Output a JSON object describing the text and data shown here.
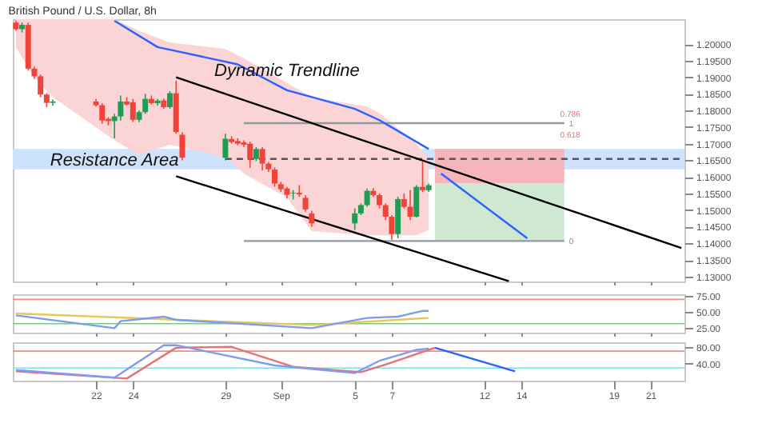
{
  "chart_data": [
    {
      "type": "candlestick",
      "title": "British Pound / U.S. Dollar, 8h",
      "tick_labels": "y",
      "x": [
        "--08-17T16:00",
        "--08-18T00:00",
        "--08-18T08:00",
        "--08-18T16:00",
        "--08-19T00:00",
        "--08-19T08:00",
        "--08-19T16:00",
        "--08-22T00:00",
        "--08-22T08:00",
        "--08-22T16:00",
        "--08-23T00:00",
        "--08-23T08:00",
        "--08-23T16:00",
        "--08-24T00:00",
        "--08-24T08:00",
        "--08-24T16:00",
        "--08-25T00:00",
        "--08-25T08:00",
        "--08-25T16:00",
        "--08-26T00:00",
        "--08-26T08:00",
        "--08-26T16:00",
        "--08-29T00:00",
        "--08-29T08:00",
        "--08-29T16:00",
        "--08-30T00:00",
        "--08-30T08:00",
        "--08-30T16:00",
        "--08-31T00:00",
        "--08-31T08:00",
        "--08-31T16:00",
        "--09-01T00:00",
        "--09-01T08:00",
        "--09-01T16:00",
        "--09-02T00:00",
        "--09-02T08:00",
        "--09-02T16:00",
        "--09-05T00:00",
        "--09-05T08:00",
        "--09-05T16:00",
        "--09-06T00:00",
        "--09-06T08:00",
        "--09-06T16:00",
        "--09-07T00:00",
        "--09-07T08:00",
        "--09-07T16:00",
        "--09-08T00:00",
        "--09-08T08:00",
        "--09-08T16:00",
        "--09-09T00:00"
      ],
      "ohlc": [
        [
          1.2065,
          1.207,
          1.204,
          1.2045
        ],
        [
          1.2045,
          1.2065,
          1.2035,
          1.2058
        ],
        [
          1.2058,
          1.2065,
          1.192,
          1.1926
        ],
        [
          1.1926,
          1.1932,
          1.1895,
          1.1903
        ],
        [
          1.1903,
          1.1908,
          1.184,
          1.1848
        ],
        [
          1.1848,
          1.1852,
          1.181,
          1.1823
        ],
        [
          1.1823,
          1.1833,
          1.1815,
          1.1827
        ],
        [
          1.1827,
          1.1835,
          1.1812,
          1.1816
        ],
        [
          1.1816,
          1.1822,
          1.176,
          1.177
        ],
        [
          1.1775,
          1.178,
          1.1755,
          1.1768
        ],
        [
          1.1768,
          1.179,
          1.1716,
          1.1782
        ],
        [
          1.1782,
          1.1845,
          1.177,
          1.1827
        ],
        [
          1.1827,
          1.184,
          1.1815,
          1.1818
        ],
        [
          1.1825,
          1.1835,
          1.1765,
          1.1772
        ],
        [
          1.1772,
          1.18,
          1.1765,
          1.1795
        ],
        [
          1.1795,
          1.185,
          1.179,
          1.1835
        ],
        [
          1.1835,
          1.1845,
          1.1818,
          1.1822
        ],
        [
          1.1822,
          1.1835,
          1.1815,
          1.183
        ],
        [
          1.183,
          1.1836,
          1.1805,
          1.181
        ],
        [
          1.181,
          1.1858,
          1.1805,
          1.1852
        ],
        [
          1.1852,
          1.189,
          1.173,
          1.1735
        ],
        [
          1.1727,
          1.1735,
          1.165,
          1.1658
        ],
        [
          1.1658,
          1.173,
          1.165,
          1.1715
        ],
        [
          1.1714,
          1.1722,
          1.17,
          1.1705
        ],
        [
          1.1708,
          1.1716,
          1.1695,
          1.17
        ],
        [
          1.1704,
          1.171,
          1.169,
          1.1697
        ],
        [
          1.17,
          1.1706,
          1.1627,
          1.1654
        ],
        [
          1.1654,
          1.169,
          1.1648,
          1.1684
        ],
        [
          1.1684,
          1.169,
          1.162,
          1.164
        ],
        [
          1.164,
          1.1645,
          1.1615,
          1.1623
        ],
        [
          1.1622,
          1.1628,
          1.157,
          1.158
        ],
        [
          1.1578,
          1.1585,
          1.1555,
          1.1563
        ],
        [
          1.1565,
          1.157,
          1.1535,
          1.1546
        ],
        [
          1.155,
          1.156,
          1.1532,
          1.1552
        ],
        [
          1.1552,
          1.1575,
          1.154,
          1.1547
        ],
        [
          1.1537,
          1.1545,
          1.1495,
          1.1502
        ],
        [
          1.149,
          1.1498,
          1.145,
          1.146
        ],
        [
          1.146,
          1.1505,
          1.144,
          1.149
        ],
        [
          1.149,
          1.152,
          1.1485,
          1.1515
        ],
        [
          1.1515,
          1.1565,
          1.151,
          1.1558
        ],
        [
          1.1558,
          1.1566,
          1.154,
          1.1545
        ],
        [
          1.1545,
          1.155,
          1.1505,
          1.1515
        ],
        [
          1.1515,
          1.152,
          1.147,
          1.148
        ],
        [
          1.148,
          1.1485,
          1.141,
          1.1428
        ],
        [
          1.1428,
          1.154,
          1.1415,
          1.1533
        ],
        [
          1.1533,
          1.155,
          1.1505,
          1.151
        ],
        [
          1.151,
          1.156,
          1.147,
          1.148
        ],
        [
          1.148,
          1.1575,
          1.1478,
          1.157
        ],
        [
          1.157,
          1.1645,
          1.1554,
          1.156
        ],
        [
          1.156,
          1.158,
          1.1555,
          1.1575
        ]
      ],
      "colors": [
        "#f0443a",
        "#1f9d55",
        "#f0443a",
        "#f0443a",
        "#f0443a",
        "#f0443a",
        "#1f9d55",
        "#f0443a",
        "#f0443a",
        "#f0443a",
        "#1f9d55",
        "#1f9d55",
        "#f0443a",
        "#f0443a",
        "#1f9d55",
        "#1f9d55",
        "#f0443a",
        "#1f9d55",
        "#f0443a",
        "#1f9d55",
        "#f0443a",
        "#f0443a",
        "#1f9d55",
        "#f0443a",
        "#f0443a",
        "#f0443a",
        "#f0443a",
        "#1f9d55",
        "#f0443a",
        "#f0443a",
        "#f0443a",
        "#f0443a",
        "#f0443a",
        "#1f9d55",
        "#f0443a",
        "#f0443a",
        "#f0443a",
        "#1f9d55",
        "#1f9d55",
        "#1f9d55",
        "#f0443a",
        "#f0443a",
        "#f0443a",
        "#f0443a",
        "#1f9d55",
        "#f0443a",
        "#f0443a",
        "#1f9d55",
        "#f0443a",
        "#1f9d55"
      ],
      "xlim": [
        "--08-17T12:00",
        "--09-22T20:00"
      ],
      "xticks": [
        {
          "value": "--08-22",
          "label": null
        },
        {
          "value": "--08-24",
          "label": null
        },
        {
          "value": "--08-29",
          "label": null
        },
        {
          "value": "--09-01",
          "label": null
        },
        {
          "value": "--09-05",
          "label": null
        },
        {
          "value": "--09-07",
          "label": null
        },
        {
          "value": "--09-12",
          "label": null
        },
        {
          "value": "--09-14",
          "label": null
        },
        {
          "value": "--09-19",
          "label": null
        },
        {
          "value": "--09-21",
          "label": null
        }
      ],
      "ylim": [
        1.1285,
        1.2075
      ],
      "yticks": [
        {
          "value": 1.13,
          "label": "1.13000"
        },
        {
          "value": 1.135,
          "label": "1.13500"
        },
        {
          "value": 1.14,
          "label": "1.14000"
        },
        {
          "value": 1.145,
          "label": "1.14500"
        },
        {
          "value": 1.15,
          "label": "1.15000"
        },
        {
          "value": 1.155,
          "label": "1.15500"
        },
        {
          "value": 1.16,
          "label": "1.16000"
        },
        {
          "value": 1.165,
          "label": "1.16500"
        },
        {
          "value": 1.17,
          "label": "1.17000"
        },
        {
          "value": 1.175,
          "label": "1.17500"
        },
        {
          "value": 1.18,
          "label": "1.18000"
        },
        {
          "value": 1.185,
          "label": "1.18500"
        },
        {
          "value": 1.19,
          "label": "1.19000"
        },
        {
          "value": 1.195,
          "label": "1.19500"
        },
        {
          "value": 1.2,
          "label": "1.20000"
        }
      ],
      "bands": [
        {
          "axis": "y",
          "from": 1.1623,
          "to": 1.1684,
          "color": "#cfe2fb"
        }
      ],
      "series": [
        {
          "type": "line",
          "color": "#fbd5d5",
          "x": [
            "--08-17T16:00",
            "--08-18T16:00",
            "--08-19T16:00",
            "--08-23T00:00",
            "--08-24T08:00",
            "--08-26T00:00",
            "--08-29T00:00",
            "--08-30T00:00",
            "--09-01T08:00",
            "--09-02T16:00",
            "--09-05T16:00",
            "--09-06T08:00",
            "--09-08T08:00",
            "--09-09T00:00"
          ],
          "values": [
            null,
            null,
            null,
            null,
            null,
            null,
            null,
            null,
            null,
            null,
            null,
            null,
            null,
            null
          ],
          "upper": [
            1.2075,
            1.2075,
            1.2075,
            1.2075,
            1.204,
            1.2005,
            1.1985,
            1.1957,
            1.1883,
            1.184,
            1.1812,
            1.1792,
            1.17,
            1.1654
          ],
          "lower": [
            1.199,
            1.19,
            1.184,
            1.171,
            1.1667,
            1.1697,
            1.166,
            1.161,
            1.1537,
            1.1437,
            1.1424,
            1.1424,
            1.1424,
            1.144
          ]
        },
        {
          "type": "line",
          "color": "#f5b5bb",
          "x": [
            "--09-09T08:00",
            "--09-16T08:00"
          ],
          "values": [
            null,
            null
          ],
          "upper": [
            1.1684,
            1.1684
          ],
          "lower": [
            1.158,
            1.158
          ]
        },
        {
          "type": "line",
          "color": "#cfe8d2",
          "x": [
            "--09-09T08:00",
            "--09-16T08:00"
          ],
          "values": [
            null,
            null
          ],
          "upper": [
            1.158,
            1.158
          ],
          "lower": [
            1.1407,
            1.1407
          ]
        },
        {
          "type": "line",
          "color": "#9598a1",
          "x": [
            "--08-30T00:00",
            "--09-16T08:00"
          ],
          "values": [
            1.1762,
            1.1762
          ]
        },
        {
          "type": "line",
          "color": "#9598a1",
          "x": [
            "--08-30T00:00",
            "--09-16T08:00"
          ],
          "values": [
            1.1407,
            1.1407
          ]
        },
        {
          "type": "line",
          "color": "#555555",
          "line_style": "dashed",
          "x": [
            "--08-29T00:00",
            "--09-22T16:00"
          ],
          "values": [
            1.1654,
            1.1654
          ]
        },
        {
          "type": "line",
          "color": "#2962ff",
          "x": [
            "--08-23T00:00",
            "--08-25T08:00",
            "--08-29T16:00",
            "--09-01T08:00",
            "--09-05T00:00",
            "--09-06T08:00",
            "--09-09T00:00"
          ],
          "values": [
            1.207,
            1.1991,
            1.1939,
            1.1861,
            1.1805,
            1.1771,
            1.1684
          ]
        },
        {
          "type": "line",
          "color": "#000000",
          "x": [
            "--08-26T08:00",
            "--09-22T16:00"
          ],
          "values": [
            1.19,
            1.1386
          ]
        },
        {
          "type": "line",
          "color": "#000000",
          "x": [
            "--08-26T08:00",
            "--09-13T08:00"
          ],
          "values": [
            1.1602,
            1.1286
          ]
        },
        {
          "type": "line",
          "color": "#2962ff",
          "x": [
            "--09-09T16:00",
            "--09-14T08:00"
          ],
          "values": [
            1.161,
            1.1415
          ]
        }
      ],
      "annotations": [
        {
          "text": "Dynamic Trendline",
          "x": "--09-01T08:00",
          "y": 1.189
        },
        {
          "text": "Resistance Area",
          "x": "--08-23T00:00",
          "y": 1.1619
        },
        {
          "text": "1",
          "x": "--09-16T08:00",
          "y": 1.1762
        },
        "0.786",
        "0.618",
        {
          "text": "0",
          "x": "--09-16T08:00",
          "y": 1.1407
        }
      ]
    },
    {
      "type": "line",
      "tick_labels": "y",
      "ylim": [
        18,
        78
      ],
      "xlim": [
        "--08-17T12:00",
        "--09-22T20:00"
      ],
      "xticks": [
        {
          "value": "--08-22",
          "label": null
        },
        {
          "value": "--08-24",
          "label": null
        },
        {
          "value": "--08-29",
          "label": null
        },
        {
          "value": "--09-01",
          "label": null
        },
        {
          "value": "--09-05",
          "label": null
        },
        {
          "value": "--09-07",
          "label": null
        },
        {
          "value": "--09-12",
          "label": null
        },
        {
          "value": "--09-14",
          "label": null
        },
        {
          "value": "--09-19",
          "label": null
        },
        {
          "value": "--09-21",
          "label": null
        }
      ],
      "yticks": [
        {
          "value": 75,
          "label": "75.00"
        },
        {
          "value": 50,
          "label": "50.00"
        },
        {
          "value": 25,
          "label": "25.00"
        }
      ],
      "ref_lines": [
        {
          "axis": "y",
          "value": 70,
          "color": "#f28b82"
        },
        {
          "axis": "y",
          "value": 32,
          "color": "#81c784"
        }
      ],
      "series": [
        {
          "color": "#e6c85a",
          "x": [
            "--08-17T16:00",
            "--09-02T16:00",
            "--09-09T00:00"
          ],
          "values": [
            48,
            30,
            41
          ]
        },
        {
          "color": "#7e9bf0",
          "x": [
            "--08-17T16:00",
            "--08-23T00:00",
            "--08-23T08:00",
            "--08-25T16:00",
            "--08-26T08:00",
            "--09-02T16:00",
            "--09-05T16:00",
            "--09-07T08:00",
            "--09-08T16:00",
            "--09-09T00:00"
          ],
          "values": [
            45,
            25,
            36,
            43,
            38,
            25,
            41,
            43,
            52,
            52
          ]
        }
      ]
    },
    {
      "type": "line",
      "ylim": [
        0,
        91
      ],
      "xlim": [
        "--08-17T12:00",
        "--09-22T20:00"
      ],
      "xticks": [
        {
          "value": "--08-22",
          "label": "22"
        },
        {
          "value": "--08-24",
          "label": "24"
        },
        {
          "value": "--08-29",
          "label": "29"
        },
        {
          "value": "--09-01",
          "label": "Sep"
        },
        {
          "value": "--09-05",
          "label": "5"
        },
        {
          "value": "--09-07",
          "label": "7"
        },
        {
          "value": "--09-12",
          "label": "12"
        },
        {
          "value": "--09-14",
          "label": "14"
        },
        {
          "value": "--09-19",
          "label": "19"
        },
        {
          "value": "--09-21",
          "label": "21"
        }
      ],
      "yticks": [
        {
          "value": 80,
          "label": "80.00"
        },
        {
          "value": 40,
          "label": "40.00"
        }
      ],
      "ref_lines": [
        {
          "axis": "y",
          "value": 70,
          "color": "#f28b82"
        },
        {
          "axis": "y",
          "value": 30,
          "color": "#80deea"
        }
      ],
      "series": [
        {
          "color": "#e57373",
          "x": [
            "--08-17T16:00",
            "--08-23T16:00",
            "--08-26T08:00",
            "--08-29T08:00",
            "--09-01T16:00",
            "--09-05T08:00",
            "--09-06T16:00",
            "--09-08T16:00",
            "--09-09T08:00"
          ],
          "values": [
            22,
            5,
            78,
            80,
            33,
            20,
            38,
            68,
            78
          ]
        },
        {
          "color": "#7e9bf0",
          "x": [
            "--08-17T16:00",
            "--08-23T00:00",
            "--08-25T16:00",
            "--08-26T08:00",
            "--08-31T16:00",
            "--09-05T00:00",
            "--09-06T08:00",
            "--09-08T08:00",
            "--09-09T00:00"
          ],
          "values": [
            25,
            7,
            84,
            84,
            36,
            18,
            47,
            73,
            76
          ]
        },
        {
          "color": "#2962ff",
          "x": [
            "--09-09T08:00",
            "--09-13T16:00"
          ],
          "values": [
            78,
            22
          ]
        }
      ]
    }
  ]
}
